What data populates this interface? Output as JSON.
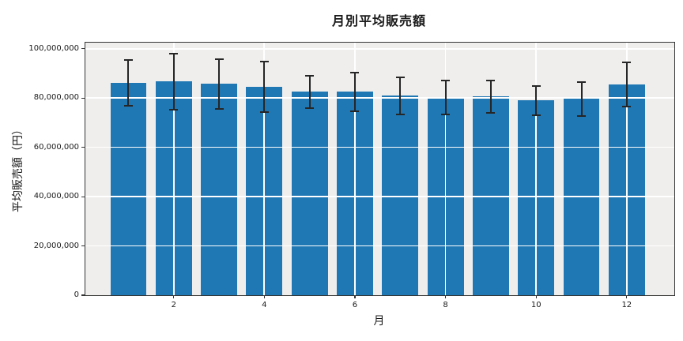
{
  "title": "月別平均販売額",
  "chart_data": {
    "type": "bar",
    "title": "月別平均販売額",
    "xlabel": "月",
    "ylabel": "平均販売額（円）",
    "categories": [
      1,
      2,
      3,
      4,
      5,
      6,
      7,
      8,
      9,
      10,
      11,
      12
    ],
    "values": [
      86300000,
      86700000,
      85700000,
      84500000,
      82500000,
      82500000,
      80900000,
      80300000,
      80600000,
      79000000,
      79600000,
      85400000
    ],
    "error_bars": [
      9300000,
      11300000,
      10200000,
      10200000,
      6700000,
      7900000,
      7600000,
      6800000,
      6600000,
      6000000,
      7000000,
      9000000
    ],
    "x_ticks": [
      2,
      4,
      6,
      8,
      10,
      12
    ],
    "y_ticks": [
      0,
      20000000,
      40000000,
      60000000,
      80000000,
      100000000
    ],
    "y_tick_labels": [
      "0",
      "20,000,000",
      "40,000,000",
      "60,000,000",
      "80,000,000",
      "100,000,000"
    ],
    "xlim": [
      0.05,
      13.05
    ],
    "ylim": [
      0,
      102500000
    ],
    "bar_width": 0.8,
    "grid": true,
    "grid_above_bars": true,
    "legend_position": "none",
    "colors": {
      "bar": "#1f77b4",
      "error_bar": "#262626",
      "plot_background": "#f0eeed",
      "grid": "#ffffff",
      "spine": "#333333",
      "figure_background": "#ffffff",
      "text": "#1a1a1a"
    }
  }
}
